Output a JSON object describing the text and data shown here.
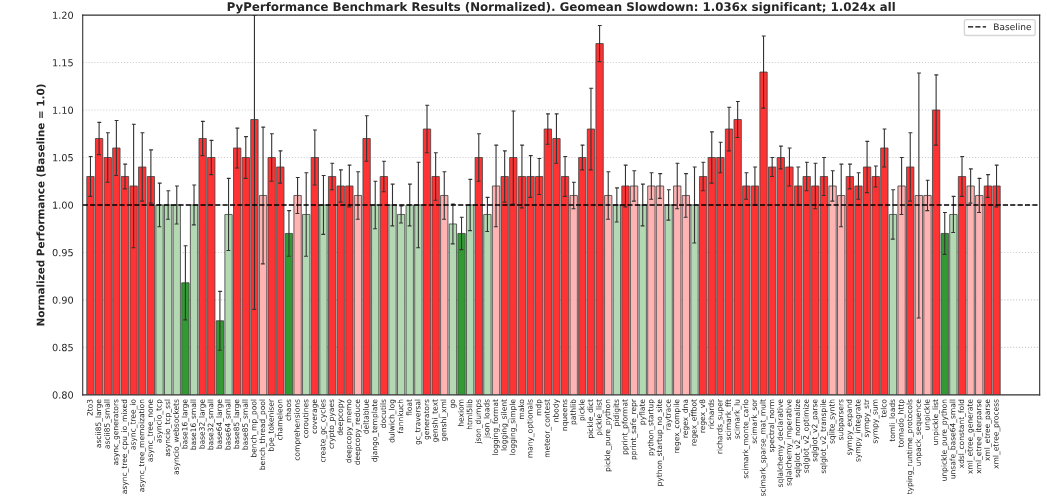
{
  "chart_data": {
    "type": "bar",
    "title": "PyPerformance Benchmark Results (Normalized). Geomean Slowdown: 1.036x significant; 1.024x all",
    "ylabel": "Normalized Performance (Baseline = 1.0)",
    "categories": [
      "2to3",
      "ascii85_large",
      "ascii85_small",
      "async_generators",
      "async_tree_cpu_io_mixed",
      "async_tree_io",
      "async_tree_memoization",
      "async_tree_none",
      "asyncio_tcp",
      "asyncio_tcp_ssl",
      "asyncio_websockets",
      "base16_large",
      "base16_small",
      "base32_large",
      "base32_small",
      "base64_large",
      "base64_small",
      "base85_large",
      "base85_small",
      "bench_mp_pool",
      "bench_thread_pool",
      "bpe_tokeniser",
      "chameleon",
      "chaos",
      "comprehensions",
      "coroutines",
      "coverage",
      "create_gc_cycles",
      "crypto_pyaes",
      "deepcopy",
      "deepcopy_memo",
      "deepcopy_reduce",
      "deltablue",
      "django_template",
      "docutils",
      "dulwich_log",
      "fannkuch",
      "float",
      "gc_traversal",
      "generators",
      "genshi_text",
      "genshi_xml",
      "go",
      "hexiom",
      "html5lib",
      "json_dumps",
      "json_loads",
      "logging_format",
      "logging_silent",
      "logging_simple",
      "mako",
      "many_optionals",
      "mdp",
      "meteor_contest",
      "nbody",
      "nqueens",
      "pathlib",
      "pickle",
      "pickle_dict",
      "pickle_list",
      "pickle_pure_python",
      "pidigits",
      "pprint_pformat",
      "pprint_safe_repr",
      "pyflate",
      "python_startup",
      "python_startup_no_site",
      "raytrace",
      "regex_compile",
      "regex_dna",
      "regex_effbot",
      "regex_v8",
      "richards",
      "richards_super",
      "scimark_fft",
      "scimark_lu",
      "scimark_monte_carlo",
      "scimark_sor",
      "scimark_sparse_mat_mult",
      "spectral_norm",
      "sqlalchemy_declarative",
      "sqlalchemy_imperative",
      "sqlglot_v2_normalize",
      "sqlglot_v2_optimize",
      "sqlglot_v2_parse",
      "sqlglot_v2_transpile",
      "sqlite_synth",
      "subparsers",
      "sympy_expand",
      "sympy_integrate",
      "sympy_str",
      "sympy_sum",
      "telco",
      "tomli_loads",
      "tornado_http",
      "typing_runtime_protocols",
      "unpack_sequence",
      "unpickle",
      "unpickle_list",
      "unpickle_pure_python",
      "unsafe_base64_small",
      "xdsl_constant_fold",
      "xml_etree_generate",
      "xml_etree_iterparse",
      "xml_etree_parse",
      "xml_etree_process"
    ],
    "values": [
      1.03,
      1.07,
      1.05,
      1.06,
      1.03,
      1.02,
      1.04,
      1.03,
      1.0,
      1.0,
      1.0,
      0.918,
      1.0,
      1.07,
      1.05,
      0.878,
      0.99,
      1.06,
      1.05,
      1.09,
      1.01,
      1.05,
      1.04,
      0.97,
      1.01,
      0.99,
      1.05,
      1.0,
      1.03,
      1.02,
      1.02,
      1.01,
      1.07,
      1.0,
      1.03,
      1.0,
      0.99,
      1.0,
      1.0,
      1.08,
      1.03,
      1.01,
      0.98,
      0.97,
      1.0,
      1.05,
      0.99,
      1.02,
      1.03,
      1.05,
      1.03,
      1.03,
      1.03,
      1.08,
      1.07,
      1.03,
      1.01,
      1.05,
      1.08,
      1.17,
      1.01,
      1.0,
      1.02,
      1.02,
      1.0,
      1.02,
      1.02,
      1.0,
      1.02,
      1.01,
      1.0,
      1.03,
      1.05,
      1.05,
      1.08,
      1.09,
      1.02,
      1.02,
      1.14,
      1.04,
      1.05,
      1.04,
      1.02,
      1.03,
      1.02,
      1.03,
      1.02,
      1.01,
      1.03,
      1.02,
      1.04,
      1.03,
      1.06,
      0.99,
      1.02,
      1.04,
      1.01,
      1.01,
      1.1,
      0.97,
      0.99,
      1.03,
      1.02,
      1.01,
      1.02,
      1.02
    ],
    "errors": [
      0.021,
      0.017,
      0.026,
      0.029,
      0.013,
      0.065,
      0.036,
      0.028,
      0.023,
      0.015,
      0.02,
      0.039,
      0.021,
      0.018,
      0.018,
      0.031,
      0.038,
      0.021,
      0.022,
      [
        0.89,
        1.2
      ],
      0.072,
      0.025,
      0.017,
      0.024,
      0.019,
      0.044,
      0.029,
      0.031,
      0.014,
      0.017,
      0.022,
      0.025,
      0.024,
      0.025,
      0.016,
      0.022,
      0.009,
      0.022,
      0.045,
      0.025,
      0.025,
      0.025,
      0.021,
      0.017,
      0.027,
      0.025,
      0.018,
      0.043,
      0.027,
      0.049,
      0.033,
      0.022,
      0.019,
      0.016,
      0.026,
      0.021,
      0.014,
      0.013,
      0.043,
      0.019,
      0.025,
      0.018,
      0.022,
      0.016,
      0.022,
      0.014,
      0.013,
      0.016,
      0.024,
      0.023,
      0.04,
      0.015,
      0.027,
      0.016,
      0.023,
      0.019,
      0.014,
      0.02,
      0.038,
      0.01,
      0.012,
      0.02,
      0.02,
      0.015,
      0.024,
      0.02,
      0.016,
      0.033,
      0.013,
      0.014,
      0.027,
      0.011,
      0.02,
      0.026,
      0.03,
      0.036,
      0.129,
      0.016,
      0.037,
      0.022,
      0.019,
      0.021,
      0.018,
      0.018,
      0.012,
      0.022
    ],
    "colors": [
      "#ff3333",
      "#ff3333",
      "#ff3333",
      "#ff3333",
      "#ff3333",
      "#ff3333",
      "#ff3333",
      "#ff3333",
      "#b3d9b3",
      "#b3d9b3",
      "#b3d9b3",
      "#339933",
      "#b3d9b3",
      "#ff3333",
      "#ff3333",
      "#339933",
      "#b3d9b3",
      "#ff3333",
      "#ff3333",
      "#ff3333",
      "#ffb3b3",
      "#ff3333",
      "#ff3333",
      "#339933",
      "#ffb3b3",
      "#b3d9b3",
      "#ff3333",
      "#b3d9b3",
      "#ff3333",
      "#ff3333",
      "#ff3333",
      "#ffb3b3",
      "#ff3333",
      "#b3d9b3",
      "#ff3333",
      "#b3d9b3",
      "#b3d9b3",
      "#b3d9b3",
      "#b3d9b3",
      "#ff3333",
      "#ff3333",
      "#ffb3b3",
      "#b3d9b3",
      "#339933",
      "#b3d9b3",
      "#ff3333",
      "#b3d9b3",
      "#ffb3b3",
      "#ff3333",
      "#ff3333",
      "#ff3333",
      "#ff3333",
      "#ff3333",
      "#ff3333",
      "#ff3333",
      "#ff3333",
      "#ffb3b3",
      "#ff3333",
      "#ff3333",
      "#ff3333",
      "#ffb3b3",
      "#b3d9b3",
      "#ff3333",
      "#ffb3b3",
      "#b3d9b3",
      "#ffb3b3",
      "#ffb3b3",
      "#b3d9b3",
      "#ffb3b3",
      "#ffb3b3",
      "#b3d9b3",
      "#ff3333",
      "#ff3333",
      "#ff3333",
      "#ff3333",
      "#ff3333",
      "#ff3333",
      "#ff3333",
      "#ff3333",
      "#ff3333",
      "#ff3333",
      "#ff3333",
      "#ff3333",
      "#ff3333",
      "#ff3333",
      "#ff3333",
      "#ffb3b3",
      "#ffb3b3",
      "#ff3333",
      "#ff3333",
      "#ff3333",
      "#ff3333",
      "#ff3333",
      "#b3d9b3",
      "#ffb3b3",
      "#ff3333",
      "#ffb3b3",
      "#ffb3b3",
      "#ff3333",
      "#339933",
      "#b3d9b3",
      "#ff3333",
      "#ffb3b3",
      "#ffb3b3",
      "#ff3333",
      "#ff3333"
    ],
    "ylim": [
      0.8,
      1.2
    ],
    "yticks": [
      {
        "value": 0.8,
        "label": "0.80"
      },
      {
        "value": 0.85,
        "label": "0.85"
      },
      {
        "value": 0.9,
        "label": "0.90"
      },
      {
        "value": 0.95,
        "label": "0.95"
      },
      {
        "value": 1.0,
        "label": "1.00"
      },
      {
        "value": 1.05,
        "label": "1.05"
      },
      {
        "value": 1.1,
        "label": "1.10"
      },
      {
        "value": 1.15,
        "label": "1.15"
      },
      {
        "value": 1.2,
        "label": "1.20"
      }
    ],
    "ref_lines": [
      {
        "axis": "y",
        "value": 1.0,
        "label": "Baseline",
        "color": "#000000",
        "line_style": "dashed"
      }
    ],
    "grid": "y",
    "legend": "top right"
  }
}
